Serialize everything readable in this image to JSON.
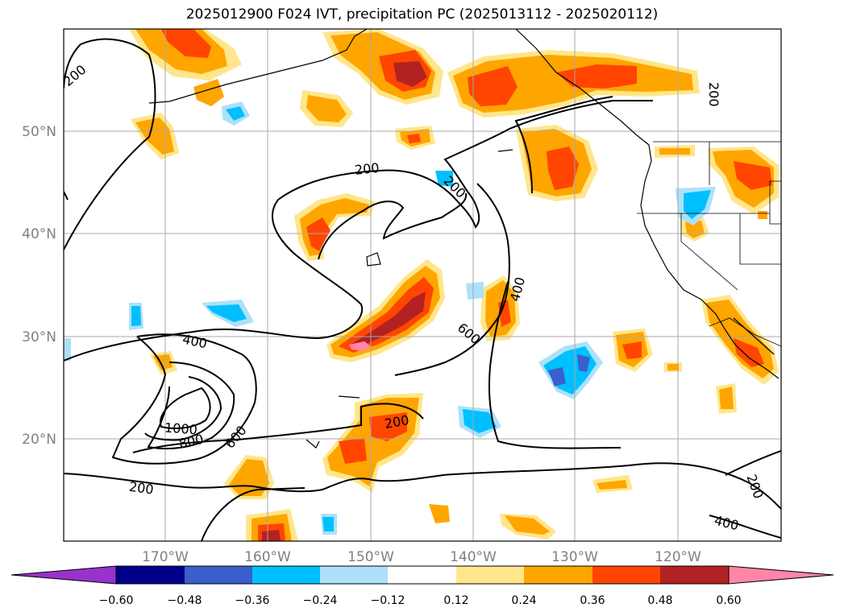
{
  "title": "2025012900 F024 IVT, precipitation PC (2025013112 - 2025020112)",
  "map": {
    "lat_labels": [
      "50°N",
      "40°N",
      "30°N",
      "20°N"
    ],
    "lon_labels": [
      "170°W",
      "160°W",
      "150°W",
      "140°W",
      "130°W",
      "120°W"
    ],
    "contour_labels": [
      "200",
      "200",
      "200",
      "200",
      "200",
      "200",
      "200",
      "400",
      "400",
      "400",
      "600",
      "600",
      "800",
      "1000"
    ]
  },
  "colorbar": {
    "ticks": [
      "−0.60",
      "−0.48",
      "−0.36",
      "−0.24",
      "−0.12",
      "0.12",
      "0.24",
      "0.36",
      "0.48",
      "0.60"
    ],
    "colors": {
      "below": "#9932CC",
      "neg_060": "#00008B",
      "neg_048": "#3A5FCD",
      "neg_036": "#00BFFF",
      "neg_024": "#ADE1F9",
      "zero": "#FFFFFF",
      "pos_012": "#FFE68A",
      "pos_024": "#FFA500",
      "pos_036": "#FF4500",
      "pos_048": "#B22222",
      "above": "#FF86A8"
    }
  }
}
